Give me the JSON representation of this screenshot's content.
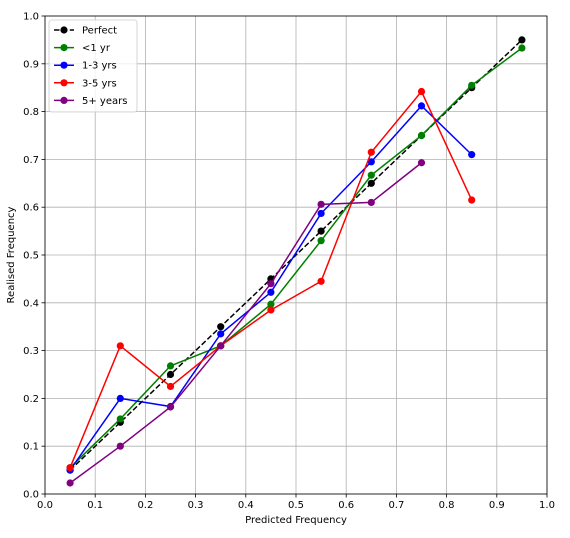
{
  "chart_data": {
    "type": "line",
    "title": "",
    "xlabel": "Predicted Frequency",
    "ylabel": "Realised Frequency",
    "xlim": [
      0.0,
      1.0
    ],
    "ylim": [
      0.0,
      1.0
    ],
    "xticks": [
      "0.0",
      "0.1",
      "0.2",
      "0.3",
      "0.4",
      "0.5",
      "0.6",
      "0.7",
      "0.8",
      "0.9",
      "1.0"
    ],
    "yticks": [
      "0.0",
      "0.1",
      "0.2",
      "0.3",
      "0.4",
      "0.5",
      "0.6",
      "0.7",
      "0.8",
      "0.9",
      "1.0"
    ],
    "grid": true,
    "legend_position": "top-left",
    "series": [
      {
        "name": "Perfect",
        "color": "#000000",
        "dashed": true,
        "x": [
          0.05,
          0.15,
          0.25,
          0.35,
          0.45,
          0.55,
          0.65,
          0.75,
          0.85,
          0.95
        ],
        "y": [
          0.05,
          0.15,
          0.25,
          0.35,
          0.45,
          0.55,
          0.65,
          0.75,
          0.85,
          0.95
        ]
      },
      {
        "name": "<1 yr",
        "color": "#008000",
        "dashed": false,
        "x": [
          0.05,
          0.15,
          0.25,
          0.35,
          0.45,
          0.55,
          0.65,
          0.75,
          0.85,
          0.95
        ],
        "y": [
          0.055,
          0.157,
          0.268,
          0.31,
          0.397,
          0.53,
          0.667,
          0.75,
          0.855,
          0.933
        ]
      },
      {
        "name": "1-3 yrs",
        "color": "#0000ff",
        "dashed": false,
        "x": [
          0.05,
          0.15,
          0.25,
          0.35,
          0.45,
          0.55,
          0.65,
          0.75,
          0.85
        ],
        "y": [
          0.05,
          0.2,
          0.183,
          0.335,
          0.422,
          0.587,
          0.695,
          0.812,
          0.71
        ]
      },
      {
        "name": "3-5 yrs",
        "color": "#ff0000",
        "dashed": false,
        "x": [
          0.05,
          0.15,
          0.25,
          0.35,
          0.45,
          0.55,
          0.65,
          0.75,
          0.85
        ],
        "y": [
          0.055,
          0.31,
          0.225,
          0.31,
          0.385,
          0.445,
          0.715,
          0.842,
          0.615
        ]
      },
      {
        "name": "5+ years",
        "color": "#800080",
        "dashed": false,
        "x": [
          0.05,
          0.15,
          0.25,
          0.35,
          0.45,
          0.55,
          0.65,
          0.75
        ],
        "y": [
          0.023,
          0.1,
          0.182,
          0.31,
          0.44,
          0.606,
          0.61,
          0.693
        ]
      }
    ]
  }
}
